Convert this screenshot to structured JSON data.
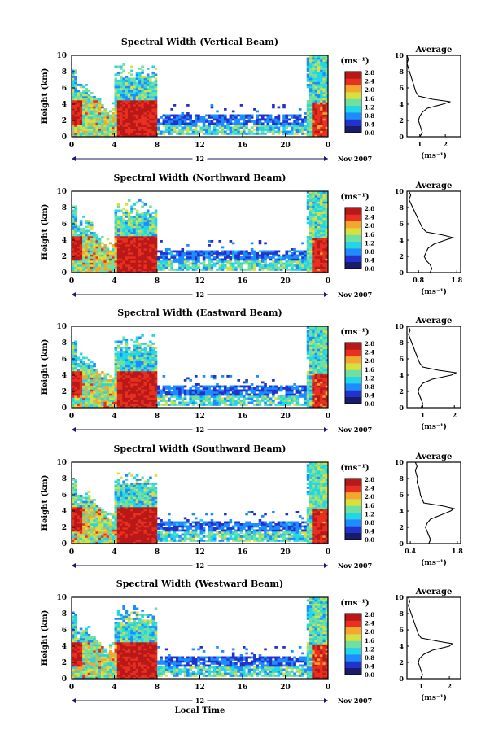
{
  "page": {
    "xlabel": "Local Time",
    "date_label": "Nov 2007",
    "colorbar_unit": "(ms⁻¹)",
    "colorbar_ticks": [
      "2.8",
      "2.4",
      "2.0",
      "1.6",
      "1.2",
      "0.8",
      "0.4",
      "0.0"
    ],
    "colors": [
      "#1a1a6a",
      "#2233cc",
      "#1e8cff",
      "#22d6e6",
      "#6fe0a0",
      "#d8e040",
      "#f2a830",
      "#e83020",
      "#b81818"
    ]
  },
  "chart_data": [
    {
      "type": "heatmap",
      "title": "Spectral Width (Vertical Beam)",
      "ylabel": "Height (km)",
      "xlabel": "",
      "x_ticks": [
        "0",
        "4",
        "8",
        "12",
        "16",
        "20",
        "0"
      ],
      "y_ticks": [
        "0",
        "2",
        "4",
        "6",
        "8",
        "10"
      ],
      "xlim": [
        0,
        24
      ],
      "ylim": [
        0,
        10
      ],
      "range_marker": "12",
      "colorbar": {
        "unit": "(ms⁻¹)",
        "ticks": [
          "2.8",
          "2.4",
          "2.0",
          "1.6",
          "1.2",
          "0.8",
          "0.4",
          "0.0"
        ],
        "range": [
          0,
          2.8
        ]
      },
      "profile": {
        "title": "Average",
        "xlabel": "(ms⁻¹)",
        "x_ticks": [
          "1",
          "2"
        ],
        "xlim": [
          0.5,
          2.6
        ],
        "y_ticks": [
          "0",
          "2",
          "4",
          "6",
          "8",
          "10"
        ],
        "height": [
          0,
          0.5,
          1,
          1.5,
          2,
          2.5,
          3,
          3.5,
          4,
          4.3,
          4.6,
          5,
          5.5,
          6,
          6.5,
          7,
          7.5,
          8,
          8.5,
          9,
          9.5,
          10
        ],
        "value": [
          1.0,
          1.1,
          1.05,
          1.0,
          0.95,
          1.0,
          1.1,
          1.3,
          1.9,
          2.2,
          1.5,
          0.95,
          0.85,
          0.8,
          0.75,
          0.7,
          0.65,
          0.6,
          0.55,
          0.5,
          0.55,
          0.5
        ]
      }
    },
    {
      "type": "heatmap",
      "title": "Spectral Width (Northward Beam)",
      "ylabel": "Height (km)",
      "xlabel": "",
      "x_ticks": [
        "0",
        "4",
        "8",
        "12",
        "16",
        "20",
        "0"
      ],
      "y_ticks": [
        "0",
        "2",
        "4",
        "6",
        "8",
        "10"
      ],
      "xlim": [
        0,
        24
      ],
      "ylim": [
        0,
        10
      ],
      "range_marker": "12",
      "colorbar": {
        "unit": "(ms⁻¹)",
        "ticks": [
          "2.8",
          "2.4",
          "2.0",
          "1.6",
          "1.2",
          "0.8",
          "0.4",
          "0.0"
        ],
        "range": [
          0,
          2.8
        ]
      },
      "profile": {
        "title": "Average",
        "xlabel": "(ms⁻¹)",
        "x_ticks": [
          "0.8",
          "1.8"
        ],
        "xlim": [
          0.5,
          1.9
        ],
        "y_ticks": [
          "0",
          "2",
          "4",
          "6",
          "8",
          "10"
        ],
        "height": [
          0,
          0.5,
          1,
          1.5,
          2,
          2.5,
          3,
          3.5,
          4,
          4.3,
          4.6,
          5,
          5.5,
          6,
          6.5,
          7,
          7.5,
          8,
          8.5,
          9,
          9.5,
          10
        ],
        "value": [
          1.1,
          1.15,
          1.1,
          1.0,
          0.95,
          1.0,
          1.05,
          1.2,
          1.5,
          1.7,
          1.45,
          1.0,
          0.9,
          0.85,
          0.8,
          0.75,
          0.7,
          0.65,
          0.6,
          0.55,
          0.6,
          0.55
        ]
      }
    },
    {
      "type": "heatmap",
      "title": "Spectral Width (Eastward Beam)",
      "ylabel": "Height (km)",
      "xlabel": "",
      "x_ticks": [
        "0",
        "4",
        "8",
        "12",
        "16",
        "20",
        "0"
      ],
      "y_ticks": [
        "0",
        "2",
        "4",
        "6",
        "8",
        "10"
      ],
      "xlim": [
        0,
        24
      ],
      "ylim": [
        0,
        10
      ],
      "range_marker": "12",
      "colorbar": {
        "unit": "(ms⁻¹)",
        "ticks": [
          "2.8",
          "2.4",
          "2.0",
          "1.6",
          "1.2",
          "0.8",
          "0.4",
          "0.0"
        ],
        "range": [
          0,
          2.8
        ]
      },
      "profile": {
        "title": "Average",
        "xlabel": "(ms⁻¹)",
        "x_ticks": [
          "1",
          "2"
        ],
        "xlim": [
          0.5,
          2.2
        ],
        "y_ticks": [
          "0",
          "2",
          "4",
          "6",
          "8",
          "10"
        ],
        "height": [
          0,
          0.5,
          1,
          1.5,
          2,
          2.5,
          3,
          3.5,
          4,
          4.3,
          4.6,
          5,
          5.5,
          6,
          6.5,
          7,
          7.5,
          8,
          8.5,
          9,
          9.5,
          10
        ],
        "value": [
          0.95,
          1.0,
          0.95,
          0.9,
          0.85,
          0.9,
          1.0,
          1.3,
          1.9,
          2.05,
          1.5,
          1.0,
          0.9,
          0.85,
          0.8,
          0.75,
          0.7,
          0.65,
          0.6,
          0.55,
          0.6,
          0.55
        ]
      }
    },
    {
      "type": "heatmap",
      "title": "Spectral Width (Southward Beam)",
      "ylabel": "Height (km)",
      "xlabel": "",
      "x_ticks": [
        "0",
        "4",
        "8",
        "12",
        "16",
        "20",
        "0"
      ],
      "y_ticks": [
        "0",
        "2",
        "4",
        "6",
        "8",
        "10"
      ],
      "xlim": [
        0,
        24
      ],
      "ylim": [
        0,
        10
      ],
      "range_marker": "12",
      "colorbar": {
        "unit": "(ms⁻¹)",
        "ticks": [
          "2.8",
          "2.4",
          "2.0",
          "1.6",
          "1.2",
          "0.8",
          "0.4",
          "0.0"
        ],
        "range": [
          0,
          2.8
        ]
      },
      "profile": {
        "title": "Average",
        "xlabel": "(ms⁻¹)",
        "x_ticks": [
          "0.4",
          "1.8"
        ],
        "xlim": [
          0.3,
          1.9
        ],
        "y_ticks": [
          "0",
          "2",
          "4",
          "6",
          "8",
          "10"
        ],
        "height": [
          0,
          0.5,
          1,
          1.5,
          2,
          2.5,
          3,
          3.5,
          4,
          4.3,
          4.6,
          5,
          5.5,
          6,
          6.5,
          7,
          7.5,
          8,
          8.5,
          9,
          9.5,
          10
        ],
        "value": [
          0.95,
          1.0,
          0.95,
          0.9,
          0.85,
          0.9,
          1.0,
          1.3,
          1.6,
          1.7,
          1.4,
          0.8,
          0.75,
          0.7,
          0.68,
          0.65,
          0.6,
          0.62,
          0.58,
          0.55,
          0.6,
          0.55
        ]
      }
    },
    {
      "type": "heatmap",
      "title": "Spectral Width (Westward Beam)",
      "ylabel": "Height (km)",
      "xlabel": "Local Time",
      "x_ticks": [
        "0",
        "4",
        "8",
        "12",
        "16",
        "20",
        "0"
      ],
      "y_ticks": [
        "0",
        "2",
        "4",
        "6",
        "8",
        "10"
      ],
      "xlim": [
        0,
        24
      ],
      "ylim": [
        0,
        10
      ],
      "range_marker": "12",
      "colorbar": {
        "unit": "(ms⁻¹)",
        "ticks": [
          "2.8",
          "2.4",
          "2.0",
          "1.6",
          "1.2",
          "0.8",
          "0.4",
          "0.0"
        ],
        "range": [
          0,
          2.8
        ]
      },
      "profile": {
        "title": "Average",
        "xlabel": "(ms⁻¹)",
        "x_ticks": [
          "1",
          "2"
        ],
        "xlim": [
          0.5,
          2.4
        ],
        "y_ticks": [
          "0",
          "2",
          "4",
          "6",
          "8",
          "10"
        ],
        "height": [
          0,
          0.5,
          1,
          1.5,
          2,
          2.5,
          3,
          3.5,
          4,
          4.3,
          4.6,
          5,
          5.5,
          6,
          6.5,
          7,
          7.5,
          8,
          8.5,
          9,
          9.5,
          10
        ],
        "value": [
          1.0,
          1.05,
          1.0,
          0.95,
          0.9,
          0.95,
          1.1,
          1.4,
          2.0,
          2.1,
          1.6,
          1.0,
          0.9,
          0.85,
          0.8,
          0.75,
          0.7,
          0.65,
          0.6,
          0.55,
          0.6,
          0.55
        ]
      }
    }
  ]
}
